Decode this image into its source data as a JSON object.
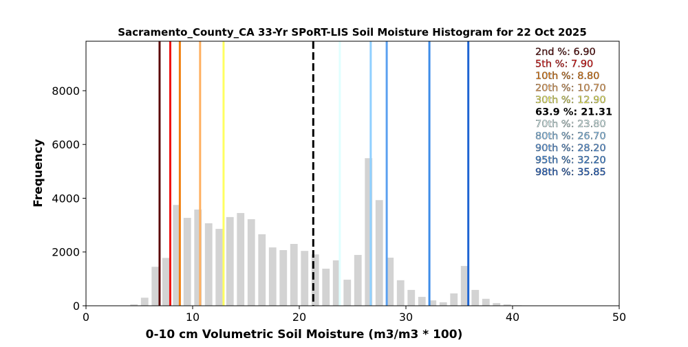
{
  "chart_data": {
    "type": "bar",
    "title": "Sacramento_County_CA 33-Yr SPoRT-LIS Soil Moisture Histogram for 22 Oct 2025",
    "xlabel": "0-10 cm Volumetric Soil Moisture (m3/m3 * 100)",
    "ylabel": "Frequency",
    "xlim": [
      0,
      50
    ],
    "ylim": [
      0,
      9840
    ],
    "xticks": [
      0,
      10,
      20,
      30,
      40,
      50
    ],
    "yticks": [
      0,
      2000,
      4000,
      6000,
      8000
    ],
    "bar_color": "#d3d3d3",
    "bins": [
      4.5,
      5.5,
      6.5,
      7.5,
      8.5,
      9.5,
      10.5,
      11.5,
      12.5,
      13.5,
      14.5,
      15.5,
      16.5,
      17.5,
      18.5,
      19.5,
      20.5,
      21.5,
      22.5,
      23.5,
      24.5,
      25.5,
      26.5,
      27.5,
      28.5,
      29.5,
      30.5,
      31.5,
      32.5,
      33.5,
      34.5,
      35.5,
      36.5,
      37.5,
      38.5,
      39.5,
      40.5
    ],
    "values": [
      50,
      300,
      1450,
      1780,
      3750,
      3270,
      3580,
      3070,
      2860,
      3300,
      3450,
      3220,
      2660,
      2170,
      2070,
      2300,
      2040,
      1910,
      1380,
      1690,
      970,
      1890,
      5490,
      3930,
      1790,
      950,
      590,
      330,
      200,
      130,
      460,
      1480,
      590,
      260,
      100,
      50,
      20
    ],
    "percentile_lines": [
      {
        "label": "2nd %: 6.90",
        "value": 6.9,
        "color": "#5c0a0a"
      },
      {
        "label": "5th %: 7.90",
        "value": 7.9,
        "color": "#ee1111"
      },
      {
        "label": "10th %: 8.80",
        "value": 8.8,
        "color": "#f08010"
      },
      {
        "label": "20th %: 10.70",
        "value": 10.7,
        "color": "#ffb060"
      },
      {
        "label": "30th %: 12.90",
        "value": 12.9,
        "color": "#ffff60"
      },
      {
        "label": "63.9 %: 21.31",
        "value": 21.31,
        "color": "#000000",
        "dashed": true
      },
      {
        "label": "70th %: 23.80",
        "value": 23.8,
        "color": "#e0ffff"
      },
      {
        "label": "80th %: 26.70",
        "value": 26.7,
        "color": "#90d0ff"
      },
      {
        "label": "90th %: 28.20",
        "value": 28.2,
        "color": "#5aa0f0"
      },
      {
        "label": "95th %: 32.20",
        "value": 32.2,
        "color": "#3c8ce8"
      },
      {
        "label": "98th %: 35.85",
        "value": 35.85,
        "color": "#1e64d2"
      }
    ],
    "legend_placement": "top-right"
  }
}
